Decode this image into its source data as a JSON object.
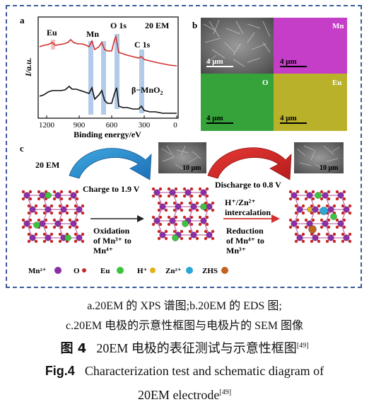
{
  "panel_a": {
    "label": "a",
    "sample_label": "20 EM",
    "ref_label": "β−MnO",
    "ref_sub": "2",
    "y_axis_label": "I/a.u.",
    "x_axis_label": "Binding energy/eV",
    "x_ticks": [
      "1200",
      "900",
      "600",
      "300",
      "0"
    ],
    "peaks": [
      "Eu",
      "Mn",
      "O 1s",
      "C 1s"
    ]
  },
  "panel_b": {
    "label": "b",
    "tiles": [
      {
        "label": "",
        "scale": "4 μm",
        "color": "#8c8c8c"
      },
      {
        "label": "Mn",
        "scale": "4 μm",
        "color": "#c43ec7"
      },
      {
        "label": "O",
        "scale": "4 μm",
        "color": "#35a33a"
      },
      {
        "label": "Eu",
        "scale": "4 μm",
        "color": "#b9b12a"
      }
    ]
  },
  "panel_c": {
    "label": "c",
    "sample_label": "20 EM",
    "charge": "Charge to 1.9 V",
    "discharge": "Discharge to 0.8 V",
    "oxidation_l1": "Oxidation",
    "oxidation_l2": "of Mn³⁺ to",
    "oxidation_l3": "Mn⁴⁺",
    "intercalation_l1": "H⁺/Zn²⁺",
    "intercalation_l2": "intercalation",
    "reduction_l1": "Reduction",
    "reduction_l2": "of Mn⁴⁺ to",
    "reduction_l3": "Mn³⁺",
    "scale_bar": "10 μm",
    "legend": [
      {
        "label": "Mn²⁺",
        "color": "#8a2fa6"
      },
      {
        "label": "O",
        "color": "#c62828"
      },
      {
        "label": "Eu",
        "color": "#3cc43c"
      },
      {
        "label": "H⁺",
        "color": "#e3b21f"
      },
      {
        "label": "Zn²⁺",
        "color": "#2aa8d8"
      },
      {
        "label": "ZHS",
        "color": "#c2641f"
      }
    ]
  },
  "caption": {
    "line_a": "a.20EM 的 XPS 谱图;b.20EM 的 EDS 图;",
    "line_b": "c.20EM 电极的示意性框图与电极片的 SEM 图像",
    "cn_fig": "图 4",
    "cn_title": "20EM 电极的表征测试与示意性框图",
    "ref": "[49]",
    "en_fig": "Fig.4",
    "en_title_1": "Characterization test and schematic diagram of",
    "en_title_2": "20EM electrode"
  }
}
